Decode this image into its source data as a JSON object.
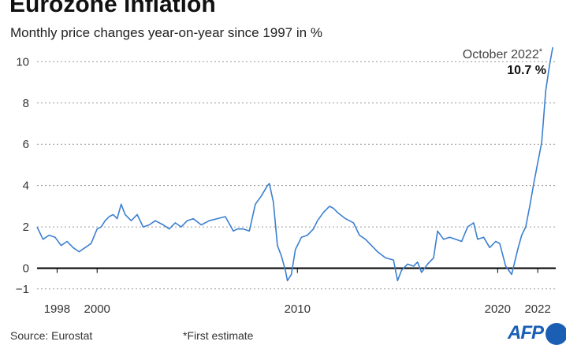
{
  "title": "Eurozone inflation",
  "subtitle": "Monthly price changes year-on-year since 1997 in %",
  "source": "Source: Eurostat",
  "footnote": "*First estimate",
  "logo_text": "AFP",
  "colors": {
    "line": "#3b7fd0",
    "zero_line": "#000000",
    "grid": "#9a9a9a",
    "logo": "#1a5fb4"
  },
  "chart_data": {
    "type": "line",
    "title": "Eurozone inflation",
    "subtitle": "Monthly price changes year-on-year since 1997 in %",
    "xlabel": "",
    "ylabel": "",
    "xlim": [
      1997,
      2022.9
    ],
    "ylim": [
      -1.2,
      10.7
    ],
    "yticks": [
      -1,
      0,
      2,
      4,
      6,
      8,
      10
    ],
    "ytick_labels": [
      "−1",
      "0",
      "2",
      "4",
      "6",
      "8",
      "10"
    ],
    "xticks": [
      1998,
      2000,
      2010,
      2020,
      2022
    ],
    "xtick_labels": [
      "1998",
      "2000",
      "2010",
      "2020",
      "2022"
    ],
    "grid": "horizontal dashed",
    "series": [
      {
        "x": [
          1997.0,
          1997.3,
          1997.6,
          1997.9,
          1998.2,
          1998.5,
          1998.8,
          1999.1,
          1999.4,
          1999.7,
          2000.0,
          2000.2,
          2000.4,
          2000.6,
          2000.8,
          2001.0,
          2001.2,
          2001.4,
          2001.7,
          2002.0,
          2002.3,
          2002.6,
          2002.9,
          2003.3,
          2003.6,
          2003.9,
          2004.2,
          2004.5,
          2004.8,
          2005.2,
          2005.6,
          2006.0,
          2006.4,
          2006.8,
          2007.0,
          2007.3,
          2007.6,
          2007.9,
          2008.2,
          2008.5,
          2008.6,
          2008.8,
          2009.0,
          2009.2,
          2009.4,
          2009.5,
          2009.7,
          2009.9,
          2010.2,
          2010.5,
          2010.8,
          2011.0,
          2011.3,
          2011.6,
          2011.8,
          2012.0,
          2012.4,
          2012.8,
          2013.1,
          2013.4,
          2013.7,
          2014.0,
          2014.4,
          2014.8,
          2015.0,
          2015.2,
          2015.5,
          2015.8,
          2016.0,
          2016.2,
          2016.5,
          2016.8,
          2017.0,
          2017.3,
          2017.6,
          2017.9,
          2018.2,
          2018.5,
          2018.8,
          2019.0,
          2019.3,
          2019.6,
          2019.9,
          2020.1,
          2020.4,
          2020.7,
          2021.0,
          2021.2,
          2021.4,
          2021.6,
          2021.8,
          2022.0,
          2022.2,
          2022.4,
          2022.6,
          2022.75
        ],
        "values": [
          2.0,
          1.4,
          1.6,
          1.5,
          1.1,
          1.3,
          1.0,
          0.8,
          1.0,
          1.2,
          1.9,
          2.0,
          2.3,
          2.5,
          2.6,
          2.4,
          3.1,
          2.6,
          2.3,
          2.6,
          2.0,
          2.1,
          2.3,
          2.1,
          1.9,
          2.2,
          2.0,
          2.3,
          2.4,
          2.1,
          2.3,
          2.4,
          2.5,
          1.8,
          1.9,
          1.9,
          1.8,
          3.1,
          3.5,
          4.0,
          4.1,
          3.2,
          1.1,
          0.6,
          -0.1,
          -0.6,
          -0.3,
          0.9,
          1.5,
          1.6,
          1.9,
          2.3,
          2.7,
          3.0,
          2.9,
          2.7,
          2.4,
          2.2,
          1.6,
          1.4,
          1.1,
          0.8,
          0.5,
          0.4,
          -0.6,
          -0.1,
          0.2,
          0.1,
          0.3,
          -0.2,
          0.2,
          0.5,
          1.8,
          1.4,
          1.5,
          1.4,
          1.3,
          2.0,
          2.2,
          1.4,
          1.5,
          1.0,
          1.3,
          1.2,
          0.1,
          -0.3,
          0.9,
          1.6,
          2.0,
          3.0,
          4.1,
          5.1,
          6.1,
          8.6,
          9.9,
          10.7
        ]
      }
    ],
    "annotation": {
      "label": "October 2022",
      "marker": "*",
      "value_label": "10.7 %"
    }
  }
}
